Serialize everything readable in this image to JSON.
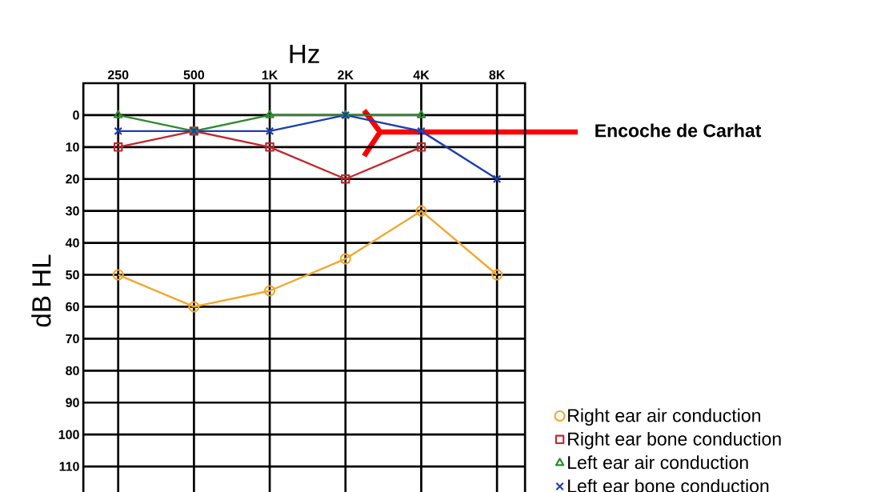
{
  "chart_data": {
    "type": "line",
    "xlabel": "Hz",
    "ylabel": "dB HL",
    "categories": [
      "250",
      "500",
      "1K",
      "2K",
      "4K",
      "8K"
    ],
    "ylim": [
      120,
      -10
    ],
    "yticks": [
      0,
      10,
      20,
      30,
      40,
      50,
      60,
      70,
      80,
      90,
      100,
      110
    ],
    "grid": true,
    "legend": "bottom right",
    "series": [
      {
        "name": "Right ear air conduction",
        "color": "#f0a830",
        "marker": "circle",
        "values": [
          50,
          60,
          55,
          45,
          30,
          50
        ]
      },
      {
        "name": "Right ear bone conduction",
        "color": "#c0282d",
        "marker": "square",
        "values": [
          10,
          5,
          10,
          20,
          10,
          null
        ]
      },
      {
        "name": "Left ear air conduction",
        "color": "#2e8b2e",
        "marker": "triangle",
        "values": [
          0,
          5,
          0,
          0,
          0,
          null
        ]
      },
      {
        "name": "Left ear bone conduction",
        "color": "#1f3fb0",
        "marker": "cross",
        "values": [
          5,
          5,
          5,
          0,
          5,
          20
        ]
      }
    ],
    "annotations": [
      "Encoche de Carhat"
    ]
  }
}
